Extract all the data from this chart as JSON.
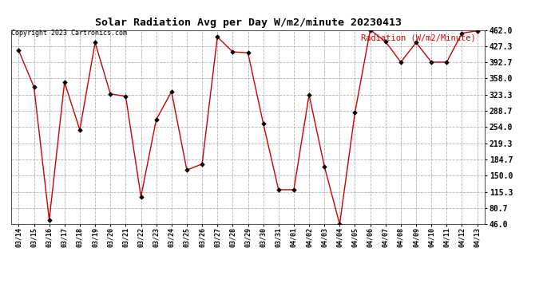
{
  "title": "Solar Radiation Avg per Day W/m2/minute 20230413",
  "copyright": "Copyright 2023 Cartronics.com",
  "legend_label": "Radiation (W/m2/Minute)",
  "dates": [
    "03/14",
    "03/15",
    "03/16",
    "03/17",
    "03/18",
    "03/19",
    "03/20",
    "03/21",
    "03/22",
    "03/23",
    "03/24",
    "03/25",
    "03/26",
    "03/27",
    "03/28",
    "03/29",
    "03/30",
    "03/31",
    "04/01",
    "04/02",
    "04/03",
    "04/04",
    "04/05",
    "04/06",
    "04/07",
    "04/08",
    "04/09",
    "04/10",
    "04/11",
    "04/12",
    "04/13"
  ],
  "values": [
    418,
    340,
    55,
    350,
    248,
    435,
    325,
    320,
    105,
    270,
    330,
    162,
    175,
    447,
    415,
    413,
    262,
    120,
    120,
    323,
    170,
    46,
    285,
    462,
    437,
    393,
    435,
    393,
    393,
    455,
    460
  ],
  "line_color": "#cc0000",
  "marker_color": "#000000",
  "background_color": "#ffffff",
  "grid_color": "#aaaaaa",
  "title_color": "#000000",
  "copyright_color": "#000000",
  "legend_color": "#cc0000",
  "ylim": [
    46.0,
    462.0
  ],
  "yticks": [
    46.0,
    80.7,
    115.3,
    150.0,
    184.7,
    219.3,
    254.0,
    288.7,
    323.3,
    358.0,
    392.7,
    427.3,
    462.0
  ]
}
